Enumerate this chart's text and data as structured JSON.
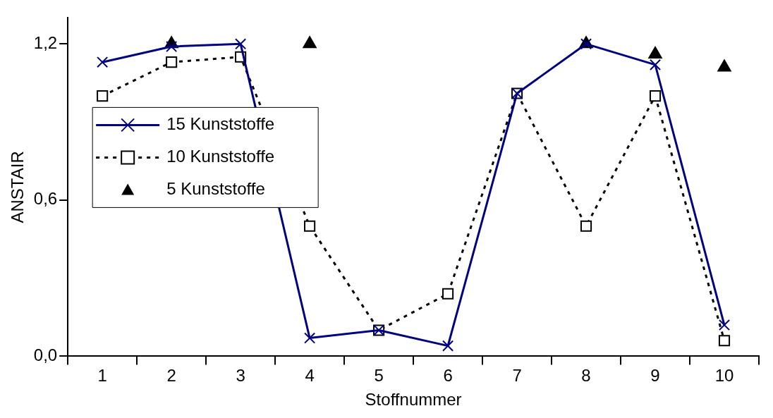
{
  "chart_data": {
    "type": "line",
    "xlabel": "Stoffnummer",
    "ylabel": "ANSTAIR",
    "categories": [
      "1",
      "2",
      "3",
      "4",
      "5",
      "6",
      "7",
      "8",
      "9",
      "10"
    ],
    "series": [
      {
        "name": "15 Kunststoffe",
        "color": "#000080",
        "marker": "cross",
        "line_style": "solid",
        "values": [
          1.13,
          1.19,
          1.2,
          0.07,
          0.1,
          0.04,
          1.01,
          1.2,
          1.12,
          0.12
        ]
      },
      {
        "name": "10 Kunststoffe",
        "color": "#000000",
        "marker": "square",
        "line_style": "dotted",
        "values": [
          1.0,
          1.13,
          1.15,
          0.5,
          0.1,
          0.24,
          1.01,
          0.5,
          1.0,
          0.06
        ]
      },
      {
        "name": "5 Kunststoffe",
        "type": "scatter",
        "color": "#000000",
        "marker": "triangle",
        "values": [
          null,
          1.2,
          null,
          1.2,
          null,
          null,
          null,
          1.2,
          1.16,
          1.11
        ]
      }
    ],
    "ylim": [
      0,
      1.3
    ],
    "yticks": [
      {
        "value": 0,
        "label": "0,0"
      },
      {
        "value": 0.6,
        "label": "0,6"
      },
      {
        "value": 1.2,
        "label": "1,2"
      }
    ],
    "grid": false,
    "legend": "top left"
  }
}
